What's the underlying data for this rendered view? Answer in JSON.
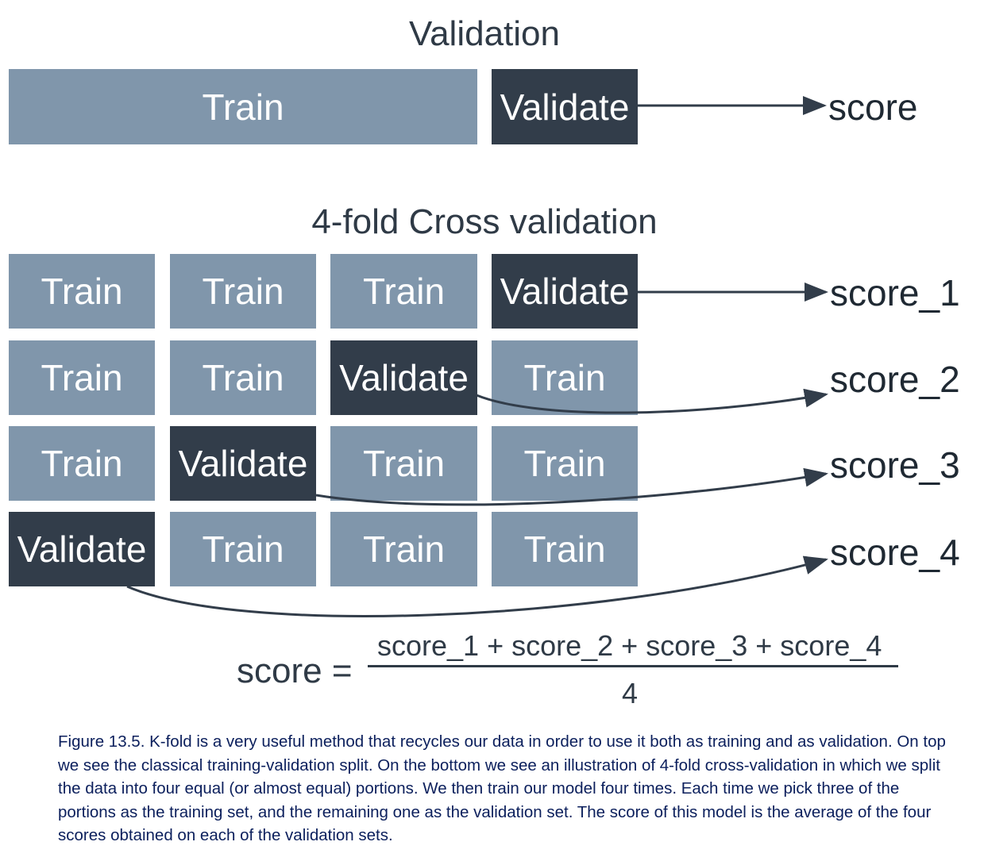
{
  "top_section": {
    "title": "Validation",
    "train_label": "Train",
    "validate_label": "Validate",
    "score_label": "score"
  },
  "cv_section": {
    "title": "4-fold Cross validation",
    "rows": [
      {
        "cells": [
          "Train",
          "Train",
          "Train",
          "Validate"
        ],
        "score": "score_1"
      },
      {
        "cells": [
          "Train",
          "Train",
          "Validate",
          "Train"
        ],
        "score": "score_2"
      },
      {
        "cells": [
          "Train",
          "Validate",
          "Train",
          "Train"
        ],
        "score": "score_3"
      },
      {
        "cells": [
          "Validate",
          "Train",
          "Train",
          "Train"
        ],
        "score": "score_4"
      }
    ]
  },
  "formula": {
    "lhs": "score =",
    "numerator": "score_1 + score_2 + score_3 + score_4",
    "denominator": "4"
  },
  "caption": "Figure 13.5. K-fold is a very useful method that recycles our data in order to use it both as training and as validation. On top we see the classical training-validation split. On the bottom we see an illustration of 4-fold cross-validation in which we split the data into four equal (or almost equal) portions. We then train our model four times. Each time we pick three of the portions as the training set, and the remaining one as the validation set. The score of this model is the average of the four scores obtained on each of the validation sets.",
  "colors": {
    "train": "#8096ab",
    "validate": "#323d4a",
    "arrow": "#323d4a",
    "caption": "#0b1f5c"
  }
}
